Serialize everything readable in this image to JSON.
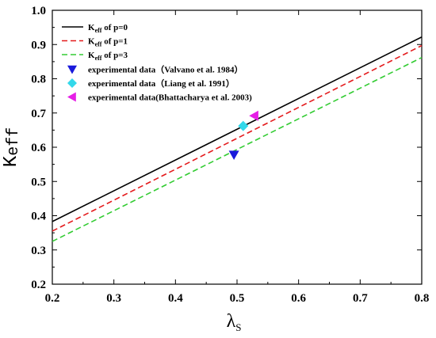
{
  "chart_data": {
    "type": "line",
    "title": "",
    "xlabel": "λ",
    "xlabel_sub": "S",
    "ylabel": "K",
    "ylabel_sub": "eff",
    "xlim": [
      0.2,
      0.8
    ],
    "ylim": [
      0.2,
      1.0
    ],
    "xticks": [
      "0.2",
      "0.3",
      "0.4",
      "0.5",
      "0.6",
      "0.7",
      "0.8"
    ],
    "yticks": [
      "0.2",
      "0.3",
      "0.4",
      "0.5",
      "0.6",
      "0.7",
      "0.8",
      "0.9",
      "1.0"
    ],
    "grid": false,
    "legend_position": "top-left",
    "series": [
      {
        "name_main": "K",
        "name_sub": "eff",
        "name_rest": " of p=0",
        "color": "#000000",
        "dash": "solid",
        "x": [
          0.2,
          0.8
        ],
        "y": [
          0.383,
          0.922
        ]
      },
      {
        "name_main": "K",
        "name_sub": "eff",
        "name_rest": " of p=1",
        "color": "#e41a1c",
        "dash": "dashed",
        "x": [
          0.2,
          0.8
        ],
        "y": [
          0.355,
          0.897
        ]
      },
      {
        "name_main": "K",
        "name_sub": "eff",
        "name_rest": " of p=3",
        "color": "#33cc33",
        "dash": "dashed",
        "x": [
          0.2,
          0.8
        ],
        "y": [
          0.325,
          0.862
        ]
      }
    ],
    "points": [
      {
        "name": "experimental data（Valvano et al. 1984）",
        "marker": "triangle-down",
        "color": "#1a1adb",
        "x": 0.495,
        "y": 0.578
      },
      {
        "name": "experimental data（Liang et al. 1991）",
        "marker": "diamond",
        "color": "#33d8ea",
        "x": 0.51,
        "y": 0.662
      },
      {
        "name": "experimental data(Bhattacharya et al. 2003)",
        "marker": "triangle-left",
        "color": "#e61ee6",
        "x": 0.528,
        "y": 0.692
      }
    ]
  }
}
